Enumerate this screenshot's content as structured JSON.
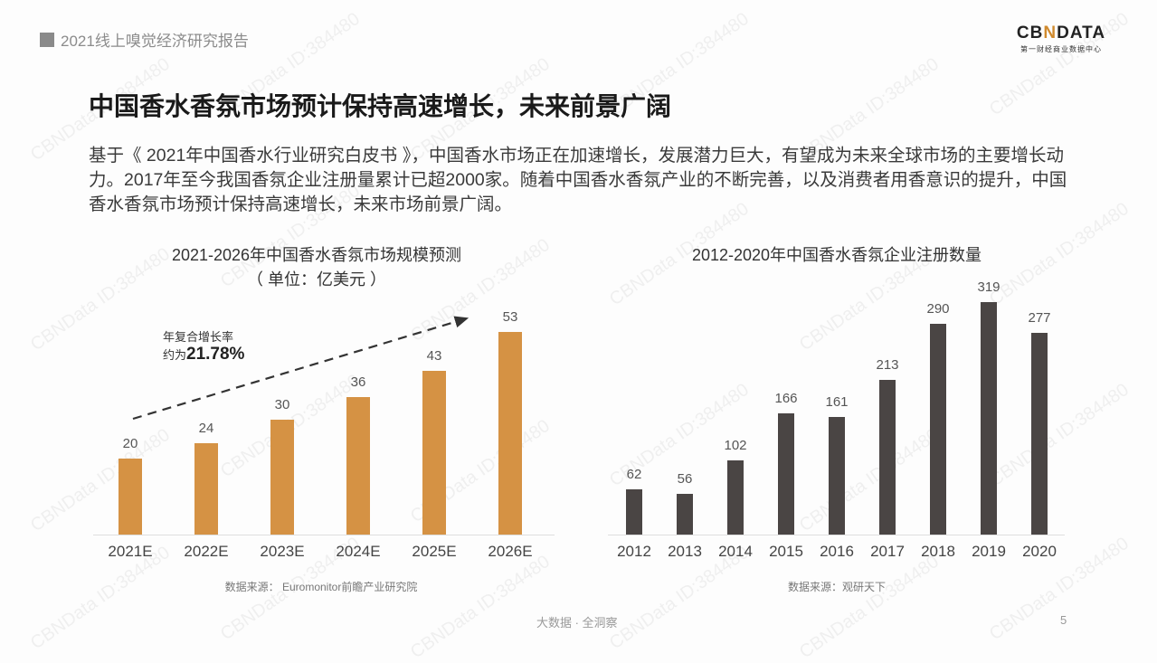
{
  "header": {
    "report_title": "2021线上嗅觉经济研究报告",
    "logo_main_pre": "CB",
    "logo_main_n": "N",
    "logo_main_post": "DATA",
    "logo_sub": "第一财经商业数据中心"
  },
  "headline": "中国香水香氛市场预计保持高速增长，未来前景广阔",
  "body_text": "基于《 2021年中国香水行业研究白皮书 》，中国香水市场正在加速增长，发展潜力巨大，有望成为未来全球市场的主要增长动力。2017年至今我国香氛企业注册量累计已超2000家。随着中国香水香氛产业的不断完善，以及消费者用香意识的提升，中国香水香氛市场预计保持高速增长，未来市场前景广阔。",
  "left_chart": {
    "title": "2021-2026年中国香水香氛市场规模预测",
    "subtitle": "（ 单位：亿美元 ）",
    "cagr_label": "年复合增长率",
    "cagr_prefix": "约为",
    "cagr_value": "21.78%",
    "source": "数据来源： Euromonitor前瞻产业研究院",
    "bar_color": "#d59244"
  },
  "right_chart": {
    "title": "2012-2020年中国香水香氛企业注册数量",
    "source": "数据来源：观研天下",
    "bar_color": "#4a4544"
  },
  "footer": {
    "tagline": "大数据 · 全洞察",
    "page_number": "5"
  },
  "watermark": "CBNData ID:384480",
  "chart_data": [
    {
      "type": "bar",
      "title": "2021-2026年中国香水香氛市场规模预测",
      "subtitle": "（单位：亿美元）",
      "categories": [
        "2021E",
        "2022E",
        "2023E",
        "2024E",
        "2025E",
        "2026E"
      ],
      "values": [
        20,
        24,
        30,
        36,
        43,
        53
      ],
      "labels": [
        "20",
        "24",
        "30",
        "36",
        "43",
        "53"
      ],
      "xlabel": "",
      "ylabel": "亿美元",
      "ylim": [
        0,
        55
      ],
      "grid": false,
      "annotation": "年复合增长率约为21.78%（虚线上升箭头）",
      "color": "#d59244"
    },
    {
      "type": "bar",
      "title": "2012-2020年中国香水香氛企业注册数量",
      "categories": [
        "2012",
        "2013",
        "2014",
        "2015",
        "2016",
        "2017",
        "2018",
        "2019",
        "2020"
      ],
      "values": [
        62,
        56,
        102,
        166,
        161,
        213,
        290,
        319,
        277
      ],
      "labels": [
        "62",
        "56",
        "102",
        "166",
        "161",
        "213",
        "290",
        "319",
        "277"
      ],
      "xlabel": "",
      "ylabel": "",
      "ylim": [
        0,
        330
      ],
      "grid": false,
      "color": "#4a4544"
    }
  ]
}
